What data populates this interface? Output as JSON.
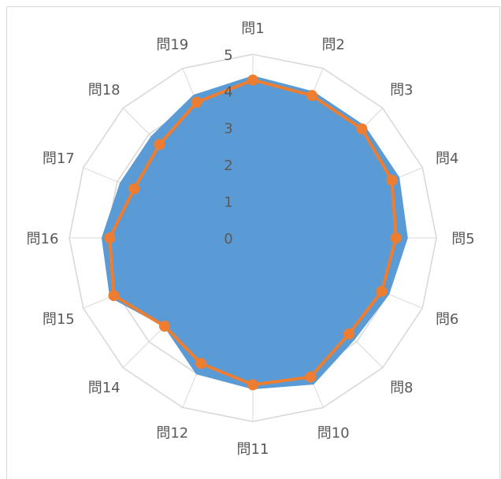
{
  "chart_data": {
    "type": "radar",
    "categories": [
      "問1",
      "問2",
      "問3",
      "問4",
      "問5",
      "問6",
      "問8",
      "問10",
      "問11",
      "問12",
      "問14",
      "問15",
      "問16",
      "問17",
      "問18",
      "問19"
    ],
    "series": [
      {
        "values": [
          4.4,
          4.3,
          4.3,
          4.3,
          4.2,
          4.0,
          3.9,
          4.3,
          4.1,
          4.0,
          3.4,
          4.2,
          4.1,
          3.9,
          3.9,
          4.2
        ]
      },
      {
        "values": [
          4.3,
          4.2,
          4.2,
          4.1,
          3.9,
          3.8,
          3.7,
          4.1,
          4.0,
          3.7,
          3.4,
          4.1,
          3.9,
          3.5,
          3.6,
          4.0
        ]
      }
    ],
    "rlim": [
      0,
      5
    ],
    "rticks": [
      "0",
      "1",
      "2",
      "3",
      "4",
      "5"
    ],
    "colors": {
      "area": "#5b9bd5",
      "line": "#ed7d31",
      "grid": "#d9d9d9",
      "text": "#595959"
    }
  }
}
